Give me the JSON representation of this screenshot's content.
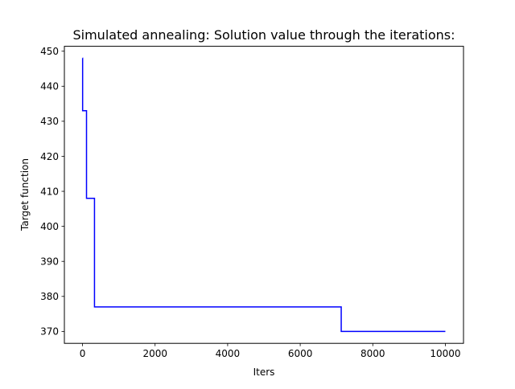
{
  "chart_data": {
    "type": "line",
    "title": "Simulated annealing: Solution value through the iterations:",
    "xlabel": "Iters",
    "ylabel": "Target function",
    "xlim": [
      -500,
      10500
    ],
    "ylim": [
      366.6,
      451.4
    ],
    "xticks": [
      0,
      2000,
      4000,
      6000,
      8000,
      10000
    ],
    "yticks": [
      370,
      380,
      390,
      400,
      410,
      420,
      430,
      440,
      450
    ],
    "grid": false,
    "series": [
      {
        "color": "#0000ff",
        "step": "post",
        "x": [
          0,
          3,
          110,
          330,
          7130,
          10000
        ],
        "y": [
          448,
          433,
          408,
          377,
          370,
          370
        ]
      }
    ]
  }
}
